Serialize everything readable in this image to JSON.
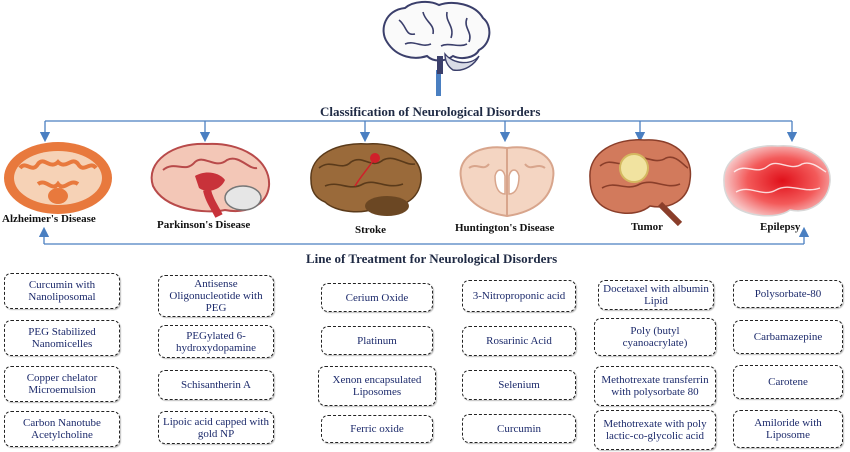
{
  "title": "Classification of Neurological Disorders",
  "subtitle": "Line of Treatment for Neurological Disorders",
  "colors": {
    "connector": "#4a7fc1",
    "box_text": "#1c2a6b",
    "heading": "#1f2a44"
  },
  "disorders": [
    {
      "label": "Alzheimer's Disease",
      "icon": "alzheimers-brain-section"
    },
    {
      "label": "Parkinson's  Disease",
      "icon": "parkinsons-brain-sagittal"
    },
    {
      "label": "Stroke",
      "icon": "stroke-brain"
    },
    {
      "label": "Huntington's Disease",
      "icon": "huntingtons-brain-section"
    },
    {
      "label": "Tumor",
      "icon": "tumor-brain"
    },
    {
      "label": "Epilepsy",
      "icon": "epilepsy-brain"
    }
  ],
  "treatments": [
    [
      "Curcumin with Nanoliposomal",
      "PEG Stabilized Nanomicelles",
      "Copper chelator Microemulsion",
      "Carbon Nanotube Acetylcholine"
    ],
    [
      "Antisense Oligonucleotide with PEG",
      "PEGylated 6-hydroxydopamine",
      "Schisantherin A",
      "Lipoic acid capped with gold NP"
    ],
    [
      "Cerium Oxide",
      "Platinum",
      "Xenon encapsulated Liposomes",
      "Ferric oxide"
    ],
    [
      "3-Nitroproponic acid",
      "Rosarinic Acid",
      "Selenium",
      "Curcumin"
    ],
    [
      "Docetaxel with albumin Lipid",
      "Poly (butyl cyanoacrylate)",
      "Methotrexate transferrin with polysorbate 80",
      "Methotrexate with poly lactic-co-glycolic acid"
    ],
    [
      "Polysorbate-80",
      "Carbamazepine",
      "Carotene",
      "Amiloride with Liposome"
    ]
  ]
}
